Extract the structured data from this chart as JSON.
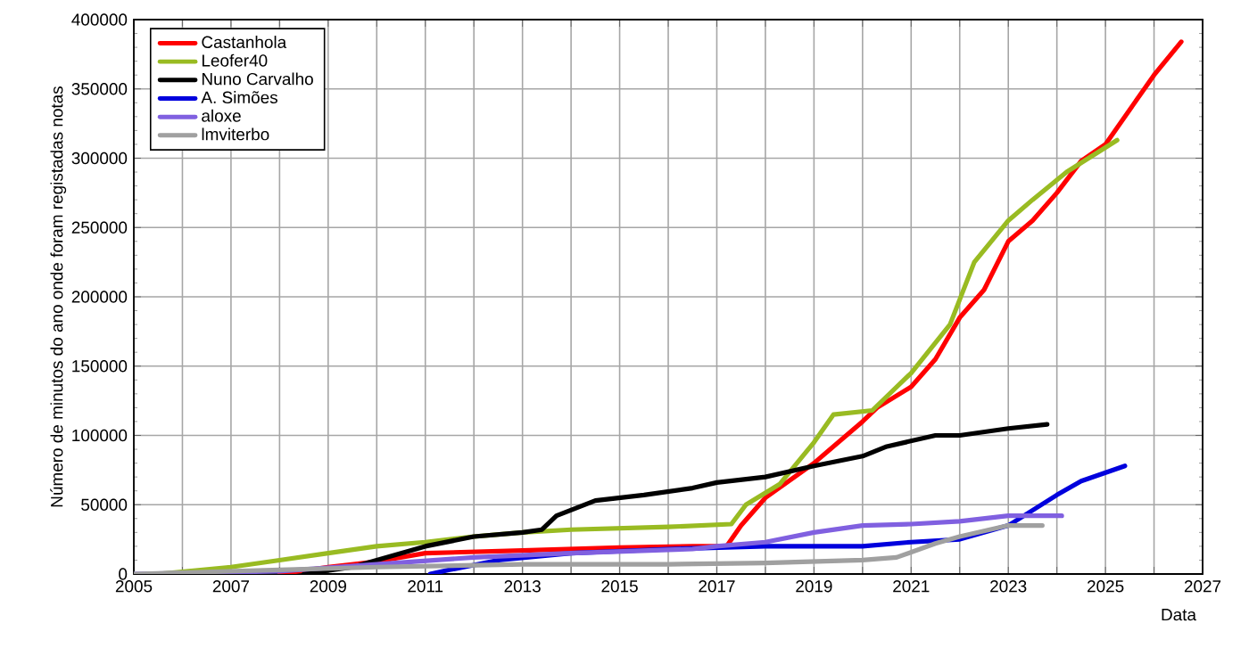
{
  "chart_data": {
    "type": "line",
    "xlabel": "Data",
    "ylabel": "Número de minutos do ano onde foram registadas notas",
    "xlim": [
      2005,
      2027
    ],
    "ylim": [
      0,
      400000
    ],
    "xticks": [
      2005,
      {
        "value": 2006,
        "label": null
      },
      2007,
      {
        "value": 2008,
        "label": null
      },
      2009,
      {
        "value": 2010,
        "label": null
      },
      2011,
      {
        "value": 2012,
        "label": null
      },
      2013,
      {
        "value": 2014,
        "label": null
      },
      2015,
      {
        "value": 2016,
        "label": null
      },
      2017,
      {
        "value": 2018,
        "label": null
      },
      2019,
      {
        "value": 2020,
        "label": null
      },
      2021,
      {
        "value": 2022,
        "label": null
      },
      2023,
      {
        "value": 2024,
        "label": null
      },
      2025,
      {
        "value": 2026,
        "label": null
      },
      2027
    ],
    "yticks": [
      0,
      50000,
      100000,
      150000,
      200000,
      250000,
      300000,
      350000,
      400000
    ],
    "grid": true,
    "legend": "top left",
    "marker": "none",
    "line_style": "solid",
    "series": [
      {
        "name": "Castanhola",
        "color": "#ff0000",
        "x": [
          2008,
          2009,
          2010,
          2011,
          2012,
          2013,
          2015,
          2016.5,
          2017.2,
          2017.5,
          2018,
          2019,
          2020,
          2020.3,
          2021,
          2021.5,
          2022,
          2022.5,
          2023,
          2023.5,
          2024,
          2024.5,
          2025,
          2025.5,
          2026,
          2026.56
        ],
        "values": [
          0,
          5000,
          9000,
          15000,
          16000,
          17000,
          19000,
          20000,
          20000,
          35000,
          55000,
          80000,
          110000,
          120000,
          135000,
          155000,
          185000,
          205000,
          240000,
          255000,
          275000,
          298000,
          310000,
          335000,
          360000,
          384000
        ]
      },
      {
        "name": "Leofer40",
        "color": "#99bb22",
        "x": [
          2005.5,
          2007,
          2008,
          2009,
          2010,
          2011,
          2012,
          2013,
          2014,
          2016,
          2017.3,
          2017.6,
          2018.3,
          2019,
          2019.4,
          2020.2,
          2021,
          2021.8,
          2022.3,
          2023,
          2023.5,
          2024.2,
          2025.24
        ],
        "values": [
          0,
          5000,
          10000,
          15000,
          20000,
          23000,
          27000,
          30000,
          32000,
          34000,
          36000,
          50000,
          65000,
          95000,
          115000,
          118000,
          145000,
          180000,
          225000,
          255000,
          270000,
          290000,
          313000
        ]
      },
      {
        "name": "Nuno Carvalho",
        "color": "#000000",
        "x": [
          2008.5,
          2009.5,
          2010,
          2011,
          2012,
          2013,
          2013.4,
          2013.7,
          2014.5,
          2015.5,
          2016.5,
          2017,
          2018,
          2019,
          2020,
          2020.5,
          2021,
          2021.5,
          2022,
          2023,
          2023.8
        ],
        "values": [
          0,
          5000,
          10000,
          20000,
          27000,
          30000,
          32000,
          42000,
          53000,
          57000,
          62000,
          66000,
          70000,
          78000,
          85000,
          92000,
          96000,
          100000,
          100000,
          105000,
          108000
        ]
      },
      {
        "name": "A. Simões",
        "color": "#0000dd",
        "x": [
          2011.1,
          2011.5,
          2012.5,
          2014,
          2016,
          2018,
          2020,
          2021,
          2022,
          2022.5,
          2023,
          2024,
          2024.5,
          2025.4
        ],
        "values": [
          0,
          3000,
          10000,
          15000,
          18000,
          20000,
          20000,
          23000,
          25000,
          30000,
          35000,
          57000,
          67000,
          78000
        ]
      },
      {
        "name": "aloxe",
        "color": "#8060e0",
        "x": [
          2005,
          2008,
          2010,
          2012,
          2014,
          2016.5,
          2017,
          2018,
          2019,
          2020,
          2021,
          2022,
          2023,
          2024.1
        ],
        "values": [
          0,
          2000,
          7000,
          12000,
          15000,
          18000,
          20000,
          23000,
          30000,
          35000,
          36000,
          38000,
          42000,
          42000
        ]
      },
      {
        "name": "lmviterbo",
        "color": "#a0a0a0",
        "x": [
          2005,
          2008,
          2010,
          2013,
          2016,
          2018,
          2020,
          2020.7,
          2021.5,
          2022,
          2023,
          2023.7
        ],
        "values": [
          0,
          3000,
          5000,
          7000,
          7000,
          8000,
          10000,
          12000,
          22000,
          27000,
          35000,
          35000
        ]
      }
    ]
  }
}
